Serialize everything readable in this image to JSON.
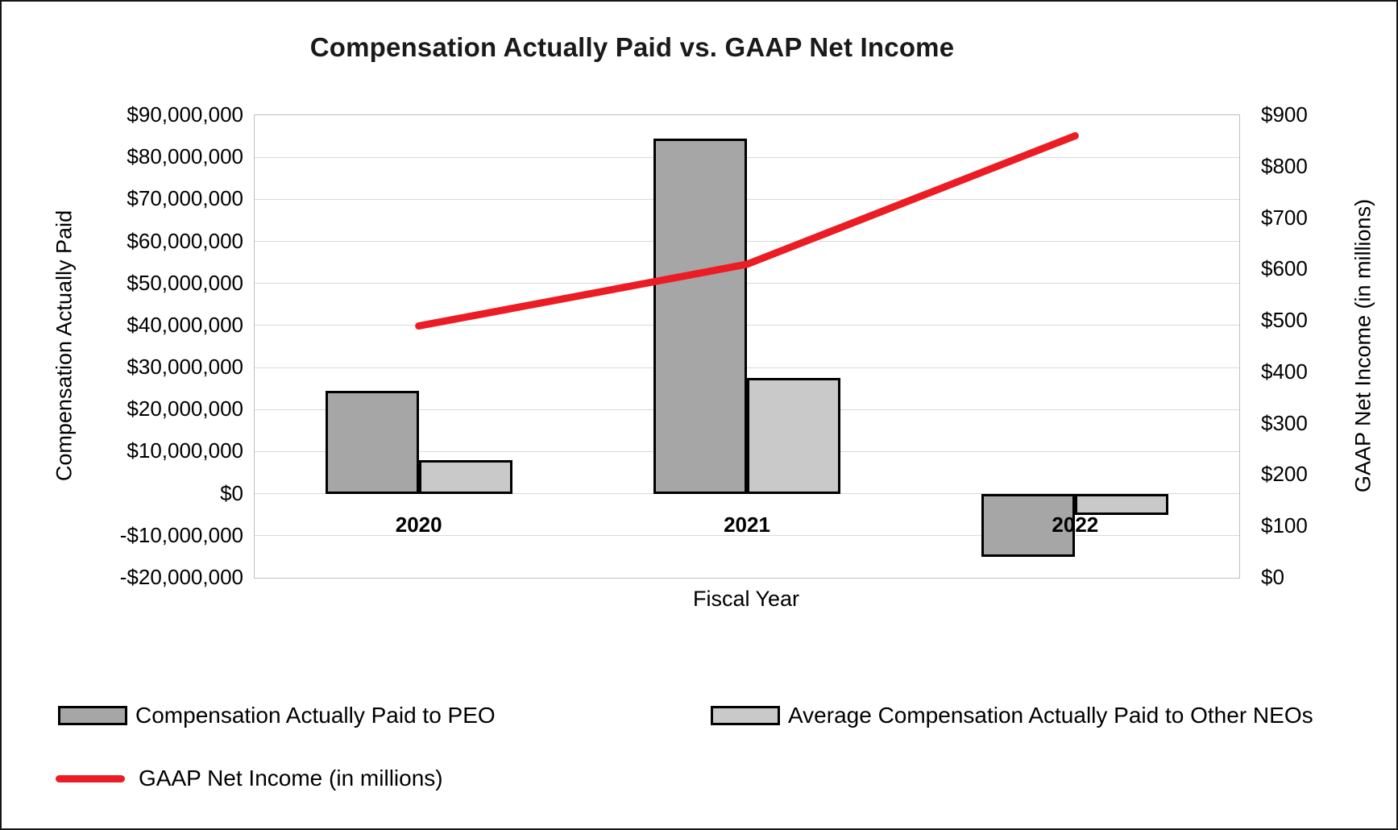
{
  "chart_data": {
    "type": "bar+line",
    "title": "Compensation Actually Paid vs. GAAP Net Income",
    "categories": [
      "2020",
      "2021",
      "2022"
    ],
    "series": [
      {
        "name": "Compensation Actually Paid to PEO",
        "type": "bar",
        "axis": "left",
        "color": "#A6A6A6",
        "values": [
          24500000,
          84500000,
          -15000000
        ]
      },
      {
        "name": "Average Compensation Actually Paid to Other NEOs",
        "type": "bar",
        "axis": "left",
        "color": "#C9C9C9",
        "values": [
          8000000,
          27500000,
          -5000000
        ]
      },
      {
        "name": "GAAP Net Income (in millions)",
        "type": "line",
        "axis": "right",
        "color": "#EC1C24",
        "values": [
          490,
          610,
          860
        ]
      }
    ],
    "xlabel": "Fiscal Year",
    "left_axis": {
      "title": "Compensation Actually Paid",
      "min": -20000000,
      "max": 90000000,
      "tick_step": 10000000,
      "tick_labels": [
        "$90,000,000",
        "$80,000,000",
        "$70,000,000",
        "$60,000,000",
        "$50,000,000",
        "$40,000,000",
        "$30,000,000",
        "$20,000,000",
        "$10,000,000",
        "$0",
        "-$10,000,000",
        "-$20,000,000"
      ]
    },
    "right_axis": {
      "title": "GAAP Net Income (in millions)",
      "min": 0,
      "max": 900,
      "tick_step": 100,
      "tick_labels": [
        "$900",
        "$800",
        "$700",
        "$600",
        "$500",
        "$400",
        "$300",
        "$200",
        "$100",
        "$0"
      ]
    },
    "grid": true,
    "legend_position": "bottom",
    "style": {
      "gridline_color": "#D9D9D9",
      "plot_border_color": "#BFBFBF",
      "bar_border_color": "#000000",
      "text_color": "#000000"
    }
  }
}
